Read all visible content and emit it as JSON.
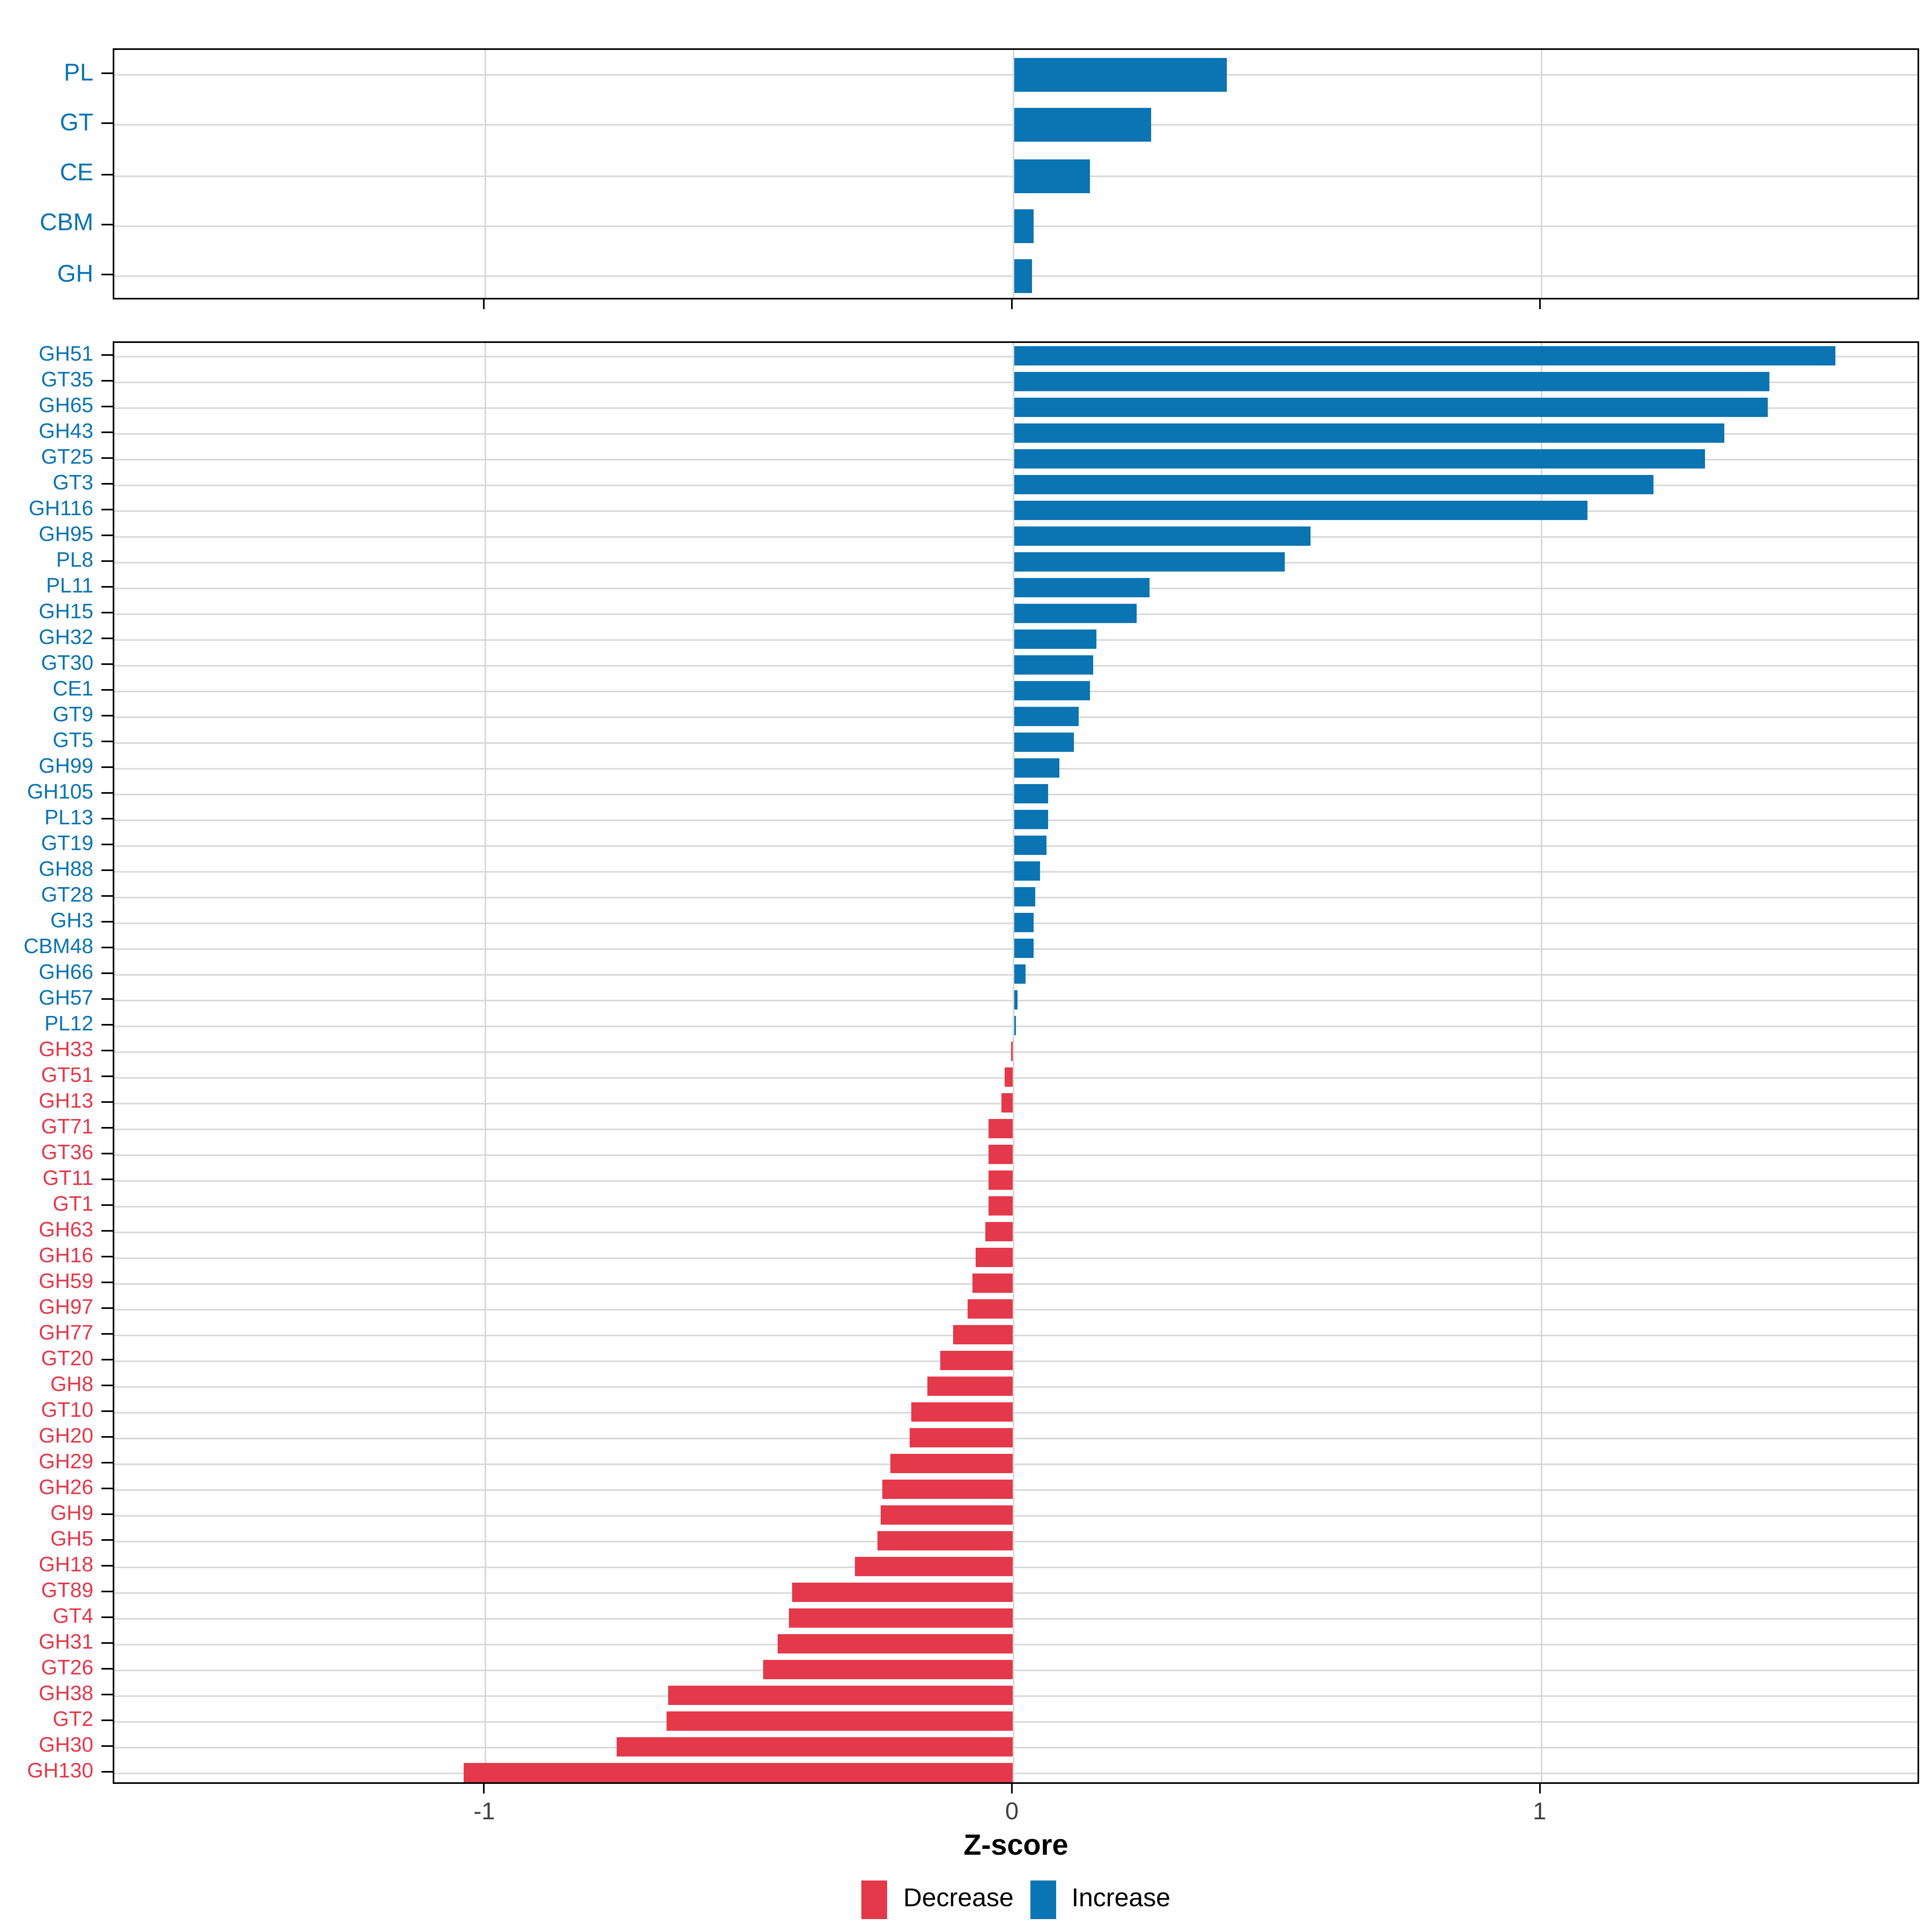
{
  "figure": {
    "background": "#ffffff"
  },
  "axis": {
    "xlabel": "Z-score",
    "ticks": [
      {
        "value": -1,
        "label": "-1"
      },
      {
        "value": 0,
        "label": "0"
      },
      {
        "value": 1,
        "label": "1"
      }
    ],
    "xlim": [
      -1.7,
      1.72
    ]
  },
  "colors": {
    "increase": "#0b74b2",
    "decrease": "#e4394a",
    "grid": "#d9d9d9",
    "axis_text": "#404040",
    "panel_border": "#000000"
  },
  "legend": {
    "position": "bottom",
    "items": [
      {
        "label": "Decrease",
        "color": "#e4394a"
      },
      {
        "label": "Increase",
        "color": "#0b74b2"
      }
    ]
  },
  "chart_data": [
    {
      "type": "bar",
      "orientation": "horizontal",
      "panel": "top",
      "title": "",
      "xlabel": "Z-score",
      "ylabel": "",
      "xlim": [
        -1.7,
        1.72
      ],
      "grid": true,
      "categories": [
        "PL",
        "GT",
        "CE",
        "CBM",
        "GH"
      ],
      "values": [
        0.405,
        0.261,
        0.146,
        0.039,
        0.034
      ]
    },
    {
      "type": "bar",
      "orientation": "horizontal",
      "panel": "bottom",
      "title": "",
      "xlabel": "Z-score",
      "ylabel": "",
      "xlim": [
        -1.7,
        1.72
      ],
      "grid": true,
      "categories": [
        "GH51",
        "GT35",
        "GH65",
        "GH43",
        "GT25",
        "GT3",
        "GH116",
        "GH95",
        "PL8",
        "PL11",
        "GH15",
        "GH32",
        "GT30",
        "CE1",
        "GT9",
        "GT5",
        "GH99",
        "GH105",
        "PL13",
        "GT19",
        "GH88",
        "GT28",
        "GH3",
        "CBM48",
        "GH66",
        "GH57",
        "PL12",
        "GH33",
        "GT51",
        "GH13",
        "GT71",
        "GT36",
        "GT11",
        "GT1",
        "GH63",
        "GH16",
        "GH59",
        "GH97",
        "GH77",
        "GT20",
        "GH8",
        "GT10",
        "GH20",
        "GH29",
        "GH26",
        "GH9",
        "GH5",
        "GH18",
        "GT89",
        "GT4",
        "GH31",
        "GT26",
        "GH38",
        "GT2",
        "GH30",
        "GH130"
      ],
      "values": [
        1.558,
        1.432,
        1.43,
        1.346,
        1.311,
        1.212,
        1.089,
        0.562,
        0.513,
        0.259,
        0.233,
        0.157,
        0.152,
        0.146,
        0.124,
        0.115,
        0.087,
        0.067,
        0.065,
        0.063,
        0.05,
        0.04,
        0.039,
        0.038,
        0.024,
        0.008,
        0.005,
        -0.004,
        -0.017,
        -0.022,
        -0.048,
        -0.048,
        -0.048,
        -0.048,
        -0.054,
        -0.072,
        -0.079,
        -0.087,
        -0.114,
        -0.14,
        -0.163,
        -0.193,
        -0.198,
        -0.234,
        -0.248,
        -0.252,
        -0.258,
        -0.3,
        -0.419,
        -0.427,
        -0.447,
        -0.474,
        -0.655,
        -0.658,
        -0.751,
        -1.041
      ]
    }
  ]
}
